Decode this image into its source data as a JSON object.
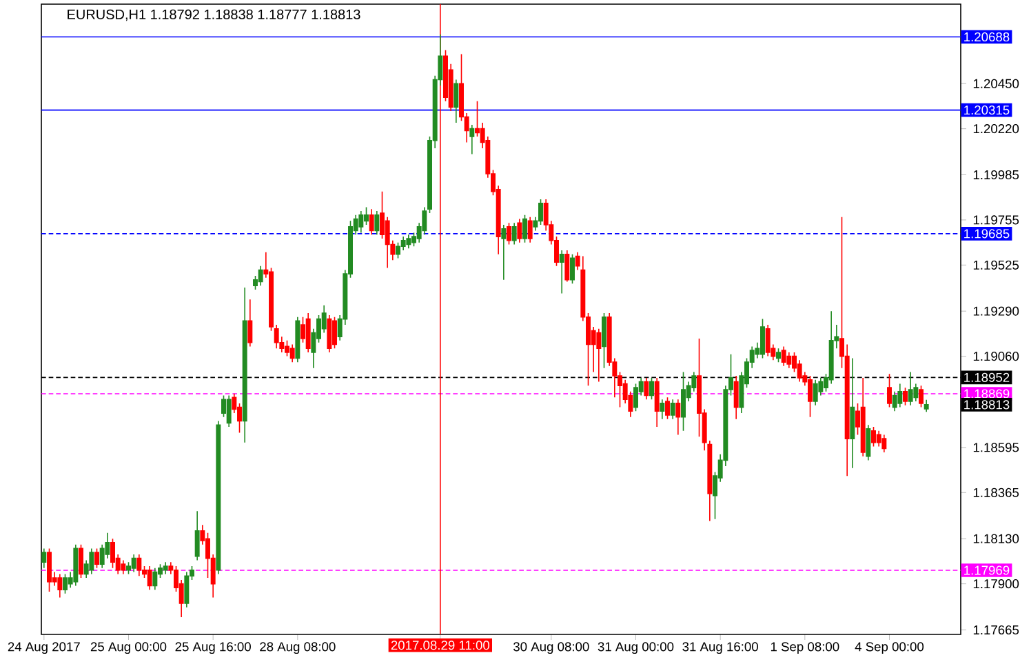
{
  "chart_data": {
    "type": "candlestick",
    "title": "EURUSD,H1  1.18792 1.18838 1.18777 1.18813",
    "colors": [
      "#228b22",
      "#ff0000",
      "#ff0000",
      "#ff0000",
      "#228b22",
      "#228b22",
      "#228b22",
      "#ff0000",
      "#228b22",
      "#228b22",
      "#ff0000",
      "#228b22",
      "#228b22",
      "#ff0000",
      "#ff0000",
      "#ff0000",
      "#228b22",
      "#228b22",
      "#ff0000",
      "#ff0000",
      "#ff0000",
      "#228b22",
      "#228b22",
      "#228b22",
      "#ff0000",
      "#ff0000",
      "#ff0000",
      "#228b22",
      "#228b22",
      "#228b22",
      "#ff0000",
      "#ff0000",
      "#ff0000",
      "#228b22",
      "#228b22",
      "#228b22",
      "#ff0000",
      "#ff0000",
      "#228b22",
      "#ff0000",
      "#228b22",
      "#228b22",
      "#ff0000",
      "#ff0000",
      "#ff0000",
      "#ff0000",
      "#ff0000",
      "#ff0000",
      "#228b22",
      "#ff0000",
      "#ff0000",
      "#228b22",
      "#228b22",
      "#228b22",
      "#ff0000",
      "#ff0000",
      "#228b22",
      "#228b22",
      "#228b22",
      "#228b22",
      "#228b22",
      "#228b22",
      "#ff0000",
      "#228b22",
      "#ff0000",
      "#ff0000",
      "#ff0000",
      "#228b22",
      "#228b22",
      "#228b22",
      "#228b22",
      "#228b22",
      "#228b22",
      "#228b22",
      "#228b22",
      "#228b22",
      "#ff0000",
      "#ff0000",
      "#228b22",
      "#ff0000",
      "#ff0000",
      "#228b22",
      "#ff0000",
      "#ff0000",
      "#ff0000",
      "#ff0000",
      "#ff0000",
      "#228b22",
      "#ff0000",
      "#228b22",
      "#ff0000",
      "#228b22",
      "#ff0000",
      "#228b22",
      "#228b22",
      "#ff0000",
      "#ff0000",
      "#ff0000",
      "#228b22",
      "#ff0000",
      "#228b22",
      "#ff0000",
      "#ff0000",
      "#ff0000",
      "#ff0000",
      "#ff0000",
      "#228b22",
      "#ff0000",
      "#ff0000",
      "#ff0000",
      "#ff0000",
      "#ff0000",
      "#228b22",
      "#228b22",
      "#ff0000",
      "#228b22",
      "#ff0000",
      "#228b22",
      "#ff0000",
      "#228b22",
      "#ff0000",
      "#228b22",
      "#228b22",
      "#228b22",
      "#ff0000",
      "#ff0000",
      "#ff0000",
      "#228b22",
      "#228b22",
      "#228b22",
      "#228b22",
      "#ff0000",
      "#228b22",
      "#228b22",
      "#228b22",
      "#228b22",
      "#228b22",
      "#ff0000",
      "#ff0000",
      "#228b22",
      "#ff0000",
      "#ff0000",
      "#ff0000",
      "#ff0000",
      "#ff0000",
      "#ff0000",
      "#228b22",
      "#228b22",
      "#228b22",
      "#228b22",
      "#228b22",
      "#ff0000",
      "#ff0000",
      "#228b22",
      "#ff0000",
      "#ff0000",
      "#228b22",
      "#ff0000",
      "#ff0000",
      "#ff0000",
      "#ff0000",
      "#228b22",
      "#228b22",
      "#ff0000",
      "#228b22",
      "#228b22",
      "#ff0000",
      "#228b22",
      null,
      null,
      null,
      null,
      null,
      null
    ],
    "categories": [
      "24 Aug 2017",
      null,
      null,
      null,
      null,
      null,
      null,
      null,
      null,
      null,
      null,
      null,
      null,
      null,
      null,
      null,
      "25 Aug 00:00",
      null,
      null,
      null,
      null,
      null,
      null,
      null,
      null,
      null,
      null,
      null,
      null,
      null,
      null,
      null,
      "25 Aug 16:00",
      null,
      null,
      null,
      null,
      null,
      null,
      null,
      null,
      null,
      null,
      null,
      null,
      null,
      null,
      null,
      "28 Aug 08:00",
      null,
      null,
      null,
      null,
      null,
      null,
      null,
      null,
      null,
      null,
      null,
      null,
      null,
      null,
      null,
      null,
      null,
      null,
      null,
      null,
      null,
      null,
      null,
      null,
      null,
      null,
      "2017.08.29 11:00",
      null,
      null,
      null,
      null,
      null,
      null,
      null,
      null,
      null,
      null,
      null,
      null,
      null,
      null,
      null,
      null,
      null,
      null,
      null,
      null,
      "30 Aug 08:00",
      null,
      null,
      null,
      null,
      null,
      null,
      null,
      null,
      null,
      null,
      null,
      null,
      null,
      null,
      null,
      "31 Aug 00:00",
      null,
      null,
      null,
      null,
      null,
      null,
      null,
      null,
      null,
      null,
      null,
      null,
      null,
      null,
      null,
      "31 Aug 16:00",
      null,
      null,
      null,
      null,
      null,
      null,
      null,
      null,
      null,
      null,
      null,
      null,
      null,
      null,
      null,
      "1 Sep 08:00",
      null,
      null,
      null,
      null,
      null,
      null,
      null,
      null,
      null,
      null,
      null,
      null,
      null,
      null,
      null,
      "4 Sep 00:00",
      null,
      null,
      null,
      null,
      null,
      null,
      null,
      null,
      null,
      null,
      null,
      null,
      null
    ],
    "ohlc": [
      [
        1.1801,
        1.1808,
        1.1798,
        1.1806
      ],
      [
        1.1806,
        1.1808,
        1.1786,
        1.1791
      ],
      [
        1.1793,
        1.1796,
        1.1789,
        1.1791
      ],
      [
        1.1793,
        1.1795,
        1.1783,
        1.1787
      ],
      [
        1.1787,
        1.1795,
        1.1785,
        1.1793
      ],
      [
        1.179,
        1.1796,
        1.1788,
        1.1793
      ],
      [
        1.1791,
        1.181,
        1.1789,
        1.1808
      ],
      [
        1.1808,
        1.181,
        1.1793,
        1.1795
      ],
      [
        1.1795,
        1.1802,
        1.1793,
        1.18
      ],
      [
        1.1797,
        1.1808,
        1.1795,
        1.1806
      ],
      [
        1.1806,
        1.1808,
        1.1798,
        1.18
      ],
      [
        1.18,
        1.181,
        1.1798,
        1.1808
      ],
      [
        1.1805,
        1.1816,
        1.1803,
        1.1811
      ],
      [
        1.1811,
        1.1813,
        1.1798,
        1.1801
      ],
      [
        1.1803,
        1.1805,
        1.1795,
        1.1797
      ],
      [
        1.18,
        1.1802,
        1.1795,
        1.1797
      ],
      [
        1.1797,
        1.1801,
        1.1795,
        1.1799
      ],
      [
        1.1798,
        1.1805,
        1.1796,
        1.1803
      ],
      [
        1.1803,
        1.1805,
        1.1794,
        1.1797
      ],
      [
        1.1797,
        1.1799,
        1.1793,
        1.1795
      ],
      [
        1.1797,
        1.1799,
        1.1787,
        1.1789
      ],
      [
        1.1789,
        1.1798,
        1.1787,
        1.1796
      ],
      [
        1.1795,
        1.18,
        1.1793,
        1.1798
      ],
      [
        1.1797,
        1.1801,
        1.1795,
        1.1799
      ],
      [
        1.1799,
        1.1801,
        1.1795,
        1.1797
      ],
      [
        1.1797,
        1.1799,
        1.1786,
        1.1788
      ],
      [
        1.179,
        1.1792,
        1.1773,
        1.178
      ],
      [
        1.178,
        1.1796,
        1.1778,
        1.1794
      ],
      [
        1.1794,
        1.1799,
        1.1792,
        1.1797
      ],
      [
        1.1804,
        1.1827,
        1.1802,
        1.1817
      ],
      [
        1.1817,
        1.182,
        1.181,
        1.1812
      ],
      [
        1.1813,
        1.1816,
        1.1793,
        1.1803
      ],
      [
        1.1803,
        1.1805,
        1.1783,
        1.179
      ],
      [
        1.1797,
        1.1873,
        1.1795,
        1.1871
      ],
      [
        1.1877,
        1.1886,
        1.1875,
        1.1884
      ],
      [
        1.1872,
        1.1886,
        1.187,
        1.1884
      ],
      [
        1.1885,
        1.1887,
        1.1877,
        1.1879
      ],
      [
        1.188,
        1.1882,
        1.1867,
        1.1873
      ],
      [
        1.1873,
        1.1941,
        1.1862,
        1.1924
      ],
      [
        1.1924,
        1.1935,
        1.1911,
        1.1913
      ],
      [
        1.1942,
        1.1947,
        1.194,
        1.1945
      ],
      [
        1.1944,
        1.1952,
        1.1942,
        1.195
      ],
      [
        1.195,
        1.1959,
        1.1946,
        1.1948
      ],
      [
        1.1949,
        1.1951,
        1.1919,
        1.1921
      ],
      [
        1.192,
        1.1922,
        1.191,
        1.1913
      ],
      [
        1.1913,
        1.1916,
        1.1908,
        1.191
      ],
      [
        1.1911,
        1.1914,
        1.1906,
        1.1908
      ],
      [
        1.191,
        1.1912,
        1.1903,
        1.1905
      ],
      [
        1.1905,
        1.1926,
        1.1903,
        1.1924
      ],
      [
        1.1922,
        1.1926,
        1.1913,
        1.1915
      ],
      [
        1.1925,
        1.1928,
        1.1908,
        1.191
      ],
      [
        1.1908,
        1.192,
        1.19,
        1.1918
      ],
      [
        1.1915,
        1.1927,
        1.1913,
        1.1925
      ],
      [
        1.192,
        1.1932,
        1.1918,
        1.1928
      ],
      [
        1.1925,
        1.1927,
        1.1908,
        1.191
      ],
      [
        1.1924,
        1.1926,
        1.191,
        1.1912
      ],
      [
        1.1916,
        1.1927,
        1.1914,
        1.1925
      ],
      [
        1.1925,
        1.195,
        1.1922,
        1.1948
      ],
      [
        1.1948,
        1.1975,
        1.1946,
        1.1972
      ],
      [
        1.197,
        1.1978,
        1.1968,
        1.1976
      ],
      [
        1.1972,
        1.198,
        1.1969,
        1.1978
      ],
      [
        1.1975,
        1.1982,
        1.1973,
        1.1978
      ],
      [
        1.1978,
        1.1981,
        1.1968,
        1.197
      ],
      [
        1.197,
        1.198,
        1.1968,
        1.1978
      ],
      [
        1.1979,
        1.199,
        1.1966,
        1.1968
      ],
      [
        1.1975,
        1.1977,
        1.1951,
        1.1963
      ],
      [
        1.1963,
        1.1965,
        1.1955,
        1.1958
      ],
      [
        1.1958,
        1.1964,
        1.1956,
        1.1962
      ],
      [
        1.1962,
        1.1967,
        1.196,
        1.1965
      ],
      [
        1.1963,
        1.1968,
        1.1961,
        1.1966
      ],
      [
        1.1964,
        1.1969,
        1.1962,
        1.1967
      ],
      [
        1.1966,
        1.1974,
        1.1964,
        1.1972
      ],
      [
        1.197,
        1.1982,
        1.1968,
        1.198
      ],
      [
        1.1981,
        1.2018,
        1.1979,
        1.2016
      ],
      [
        1.2016,
        1.2049,
        1.2012,
        1.2047
      ],
      [
        1.2047,
        1.207,
        1.2044,
        1.2059
      ],
      [
        1.2059,
        1.2062,
        1.2036,
        1.2038
      ],
      [
        1.2052,
        1.2055,
        1.2031,
        1.2033
      ],
      [
        1.2033,
        1.2047,
        1.2025,
        1.2045
      ],
      [
        1.2045,
        1.206,
        1.2026,
        1.2028
      ],
      [
        1.2028,
        1.203,
        1.2015,
        1.2021
      ],
      [
        1.2018,
        1.2024,
        1.2009,
        1.2022
      ],
      [
        1.2022,
        1.2036,
        1.2018,
        1.202
      ],
      [
        1.2022,
        1.2025,
        1.2012,
        1.2015
      ],
      [
        1.2016,
        1.2018,
        1.1997,
        1.1999
      ],
      [
        1.1999,
        1.2001,
        1.1988,
        1.199
      ],
      [
        1.1991,
        1.1993,
        1.1958,
        1.1967
      ],
      [
        1.1966,
        1.1973,
        1.1945,
        1.1971
      ],
      [
        1.1972,
        1.1974,
        1.1963,
        1.1965
      ],
      [
        1.1965,
        1.1974,
        1.1963,
        1.1972
      ],
      [
        1.1974,
        1.1976,
        1.1964,
        1.1966
      ],
      [
        1.1966,
        1.1978,
        1.1964,
        1.1976
      ],
      [
        1.1975,
        1.1977,
        1.1964,
        1.1966
      ],
      [
        1.1972,
        1.1977,
        1.197,
        1.1975
      ],
      [
        1.1975,
        1.1986,
        1.1973,
        1.1984
      ],
      [
        1.1984,
        1.1986,
        1.197,
        1.1973
      ],
      [
        1.1973,
        1.1975,
        1.1963,
        1.1965
      ],
      [
        1.1965,
        1.1967,
        1.1952,
        1.1954
      ],
      [
        1.1954,
        1.196,
        1.1938,
        1.1958
      ],
      [
        1.1958,
        1.196,
        1.1944,
        1.1945
      ],
      [
        1.1945,
        1.1958,
        1.1943,
        1.1956
      ],
      [
        1.1957,
        1.1959,
        1.195,
        1.1952
      ],
      [
        1.195,
        1.1957,
        1.1924,
        1.1926
      ],
      [
        1.1926,
        1.1928,
        1.1891,
        1.1912
      ],
      [
        1.1919,
        1.1921,
        1.1898,
        1.1912
      ],
      [
        1.1918,
        1.192,
        1.1893,
        1.191
      ],
      [
        1.1911,
        1.1928,
        1.19,
        1.1926
      ],
      [
        1.1926,
        1.1928,
        1.1901,
        1.1903
      ],
      [
        1.1903,
        1.1905,
        1.1885,
        1.1896
      ],
      [
        1.1896,
        1.1898,
        1.188,
        1.1891
      ],
      [
        1.1892,
        1.1894,
        1.1882,
        1.1884
      ],
      [
        1.1886,
        1.1888,
        1.1875,
        1.1878
      ],
      [
        1.188,
        1.1892,
        1.1878,
        1.189
      ],
      [
        1.1888,
        1.1895,
        1.1886,
        1.1893
      ],
      [
        1.1893,
        1.1895,
        1.1884,
        1.1886
      ],
      [
        1.1886,
        1.1895,
        1.1884,
        1.1893
      ],
      [
        1.1893,
        1.1895,
        1.187,
        1.1878
      ],
      [
        1.1878,
        1.1884,
        1.1874,
        1.1882
      ],
      [
        1.1883,
        1.1885,
        1.1874,
        1.1876
      ],
      [
        1.1876,
        1.1884,
        1.1874,
        1.1882
      ],
      [
        1.1882,
        1.1884,
        1.1866,
        1.1875
      ],
      [
        1.1875,
        1.1898,
        1.1868,
        1.1889
      ],
      [
        1.1885,
        1.1893,
        1.1883,
        1.1891
      ],
      [
        1.189,
        1.1898,
        1.1888,
        1.1896
      ],
      [
        1.1896,
        1.1915,
        1.1865,
        1.1877
      ],
      [
        1.1877,
        1.1879,
        1.1858,
        1.1862
      ],
      [
        1.1861,
        1.1863,
        1.1822,
        1.1836
      ],
      [
        1.1835,
        1.1847,
        1.1823,
        1.1845
      ],
      [
        1.1844,
        1.1856,
        1.1842,
        1.1853
      ],
      [
        1.1853,
        1.1891,
        1.185,
        1.1889
      ],
      [
        1.1889,
        1.1907,
        1.1886,
        1.1895
      ],
      [
        1.1893,
        1.1896,
        1.1874,
        1.188
      ],
      [
        1.188,
        1.1898,
        1.1877,
        1.1896
      ],
      [
        1.1892,
        1.1905,
        1.189,
        1.1903
      ],
      [
        1.1903,
        1.1911,
        1.19,
        1.1909
      ],
      [
        1.1907,
        1.1913,
        1.1905,
        1.191
      ],
      [
        1.1907,
        1.1925,
        1.1905,
        1.1921
      ],
      [
        1.192,
        1.1922,
        1.1906,
        1.1908
      ],
      [
        1.191,
        1.1912,
        1.1904,
        1.1906
      ],
      [
        1.1905,
        1.191,
        1.1903,
        1.1908
      ],
      [
        1.1909,
        1.1911,
        1.1901,
        1.1903
      ],
      [
        1.1906,
        1.1908,
        1.19,
        1.1902
      ],
      [
        1.1906,
        1.1908,
        1.1898,
        1.19
      ],
      [
        1.1902,
        1.1904,
        1.1893,
        1.1895
      ],
      [
        1.1896,
        1.1898,
        1.1891,
        1.1893
      ],
      [
        1.1894,
        1.1896,
        1.1875,
        1.1883
      ],
      [
        1.1883,
        1.1894,
        1.1881,
        1.1892
      ],
      [
        1.1888,
        1.1895,
        1.1886,
        1.1893
      ],
      [
        1.189,
        1.1897,
        1.1888,
        1.1895
      ],
      [
        1.1894,
        1.1929,
        1.1892,
        1.1914
      ],
      [
        1.1914,
        1.1922,
        1.191,
        1.1916
      ],
      [
        1.1915,
        1.1977,
        1.19,
        1.1906
      ],
      [
        1.1906,
        1.1912,
        1.1845,
        1.1864
      ],
      [
        1.1864,
        1.1905,
        1.1849,
        1.188
      ],
      [
        1.1878,
        1.1882,
        1.1866,
        1.187
      ],
      [
        1.188,
        1.1895,
        1.1855,
        1.1857
      ],
      [
        1.1855,
        1.1871,
        1.1853,
        1.1869
      ],
      [
        1.1868,
        1.187,
        1.186,
        1.1862
      ],
      [
        1.1866,
        1.1868,
        1.186,
        1.1862
      ],
      [
        1.1864,
        1.1866,
        1.1857,
        1.1859
      ],
      [
        1.189,
        1.1897,
        1.188,
        1.1882
      ],
      [
        1.188,
        1.1888,
        1.1878,
        1.1886
      ],
      [
        1.1882,
        1.1892,
        1.188,
        1.1888
      ],
      [
        1.1888,
        1.189,
        1.1881,
        1.1883
      ],
      [
        1.1883,
        1.1898,
        1.1881,
        1.1889
      ],
      [
        1.1885,
        1.1892,
        1.1883,
        1.189
      ],
      [
        1.1889,
        1.1891,
        1.188,
        1.1882
      ],
      [
        1.18792,
        1.18838,
        1.18777,
        1.18813
      ],
      null,
      null,
      null,
      null,
      null,
      null
    ],
    "ylim": [
      1.17642,
      1.20855
    ],
    "yticks": [
      {
        "value": 1.2045,
        "label": "1.20450"
      },
      {
        "value": 1.2022,
        "label": "1.20220"
      },
      {
        "value": 1.19985,
        "label": "1.19985"
      },
      {
        "value": 1.19755,
        "label": "1.19755"
      },
      {
        "value": 1.19525,
        "label": "1.19525"
      },
      {
        "value": 1.1929,
        "label": "1.19290"
      },
      {
        "value": 1.1906,
        "label": "1.19060"
      },
      {
        "value": 1.18595,
        "label": "1.18595"
      },
      {
        "value": 1.18365,
        "label": "1.18365"
      },
      {
        "value": 1.1813,
        "label": "1.18130"
      },
      {
        "value": 1.179,
        "label": "1.17900"
      },
      {
        "value": 1.17665,
        "label": "1.17665"
      }
    ],
    "ref_lines": [
      {
        "axis": "y",
        "value": 1.20688,
        "label": "1.20688",
        "color": "#0000ff",
        "line_style": "solid"
      },
      {
        "axis": "y",
        "value": 1.20315,
        "label": "1.20315",
        "color": "#0000ff",
        "line_style": "solid"
      },
      {
        "axis": "y",
        "value": 1.19685,
        "label": "1.19685",
        "color": "#0000ff",
        "line_style": "dashed"
      },
      {
        "axis": "y",
        "value": 1.18952,
        "label": "1.18952",
        "color": "#000000",
        "line_style": "dashed"
      },
      {
        "axis": "y",
        "value": 1.18869,
        "label": "1.18869",
        "color": "#ff00ff",
        "line_style": "dashed"
      },
      {
        "axis": "y",
        "value": 1.17969,
        "label": "1.17969",
        "color": "#ff00ff",
        "line_style": "dashed"
      },
      {
        "axis": "x",
        "value": "2017.08.29 11:00",
        "color": "#ff0000",
        "line_style": "solid"
      }
    ],
    "annotations": [
      "1.18813"
    ]
  }
}
